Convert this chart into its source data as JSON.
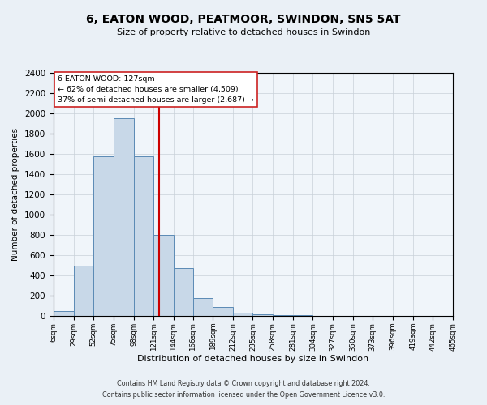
{
  "title": "6, EATON WOOD, PEATMOOR, SWINDON, SN5 5AT",
  "subtitle": "Size of property relative to detached houses in Swindon",
  "xlabel": "Distribution of detached houses by size in Swindon",
  "ylabel": "Number of detached properties",
  "bin_edges": [
    6,
    29,
    52,
    75,
    98,
    121,
    144,
    166,
    189,
    212,
    235,
    258,
    281,
    304,
    327,
    350,
    373,
    396,
    419,
    442,
    465
  ],
  "bin_labels": [
    "6sqm",
    "29sqm",
    "52sqm",
    "75sqm",
    "98sqm",
    "121sqm",
    "144sqm",
    "166sqm",
    "189sqm",
    "212sqm",
    "235sqm",
    "258sqm",
    "281sqm",
    "304sqm",
    "327sqm",
    "350sqm",
    "373sqm",
    "396sqm",
    "419sqm",
    "442sqm",
    "465sqm"
  ],
  "bar_values": [
    50,
    500,
    1580,
    1950,
    1580,
    800,
    470,
    175,
    90,
    35,
    20,
    10,
    5,
    2,
    2,
    0,
    0,
    0,
    0,
    0
  ],
  "bar_color": "#c8d8e8",
  "bar_edge_color": "#5b8ab5",
  "vline_x": 127,
  "vline_color": "#cc0000",
  "ylim": [
    0,
    2400
  ],
  "yticks": [
    0,
    200,
    400,
    600,
    800,
    1000,
    1200,
    1400,
    1600,
    1800,
    2000,
    2200,
    2400
  ],
  "annotation_line1": "6 EATON WOOD: 127sqm",
  "annotation_line2": "← 62% of detached houses are smaller (4,509)",
  "annotation_line3": "37% of semi-detached houses are larger (2,687) →",
  "footer1": "Contains HM Land Registry data © Crown copyright and database right 2024.",
  "footer2": "Contains public sector information licensed under the Open Government Licence v3.0.",
  "bg_color": "#eaf0f6",
  "plot_bg_color": "#f0f5fa",
  "grid_color": "#c8d0d8"
}
